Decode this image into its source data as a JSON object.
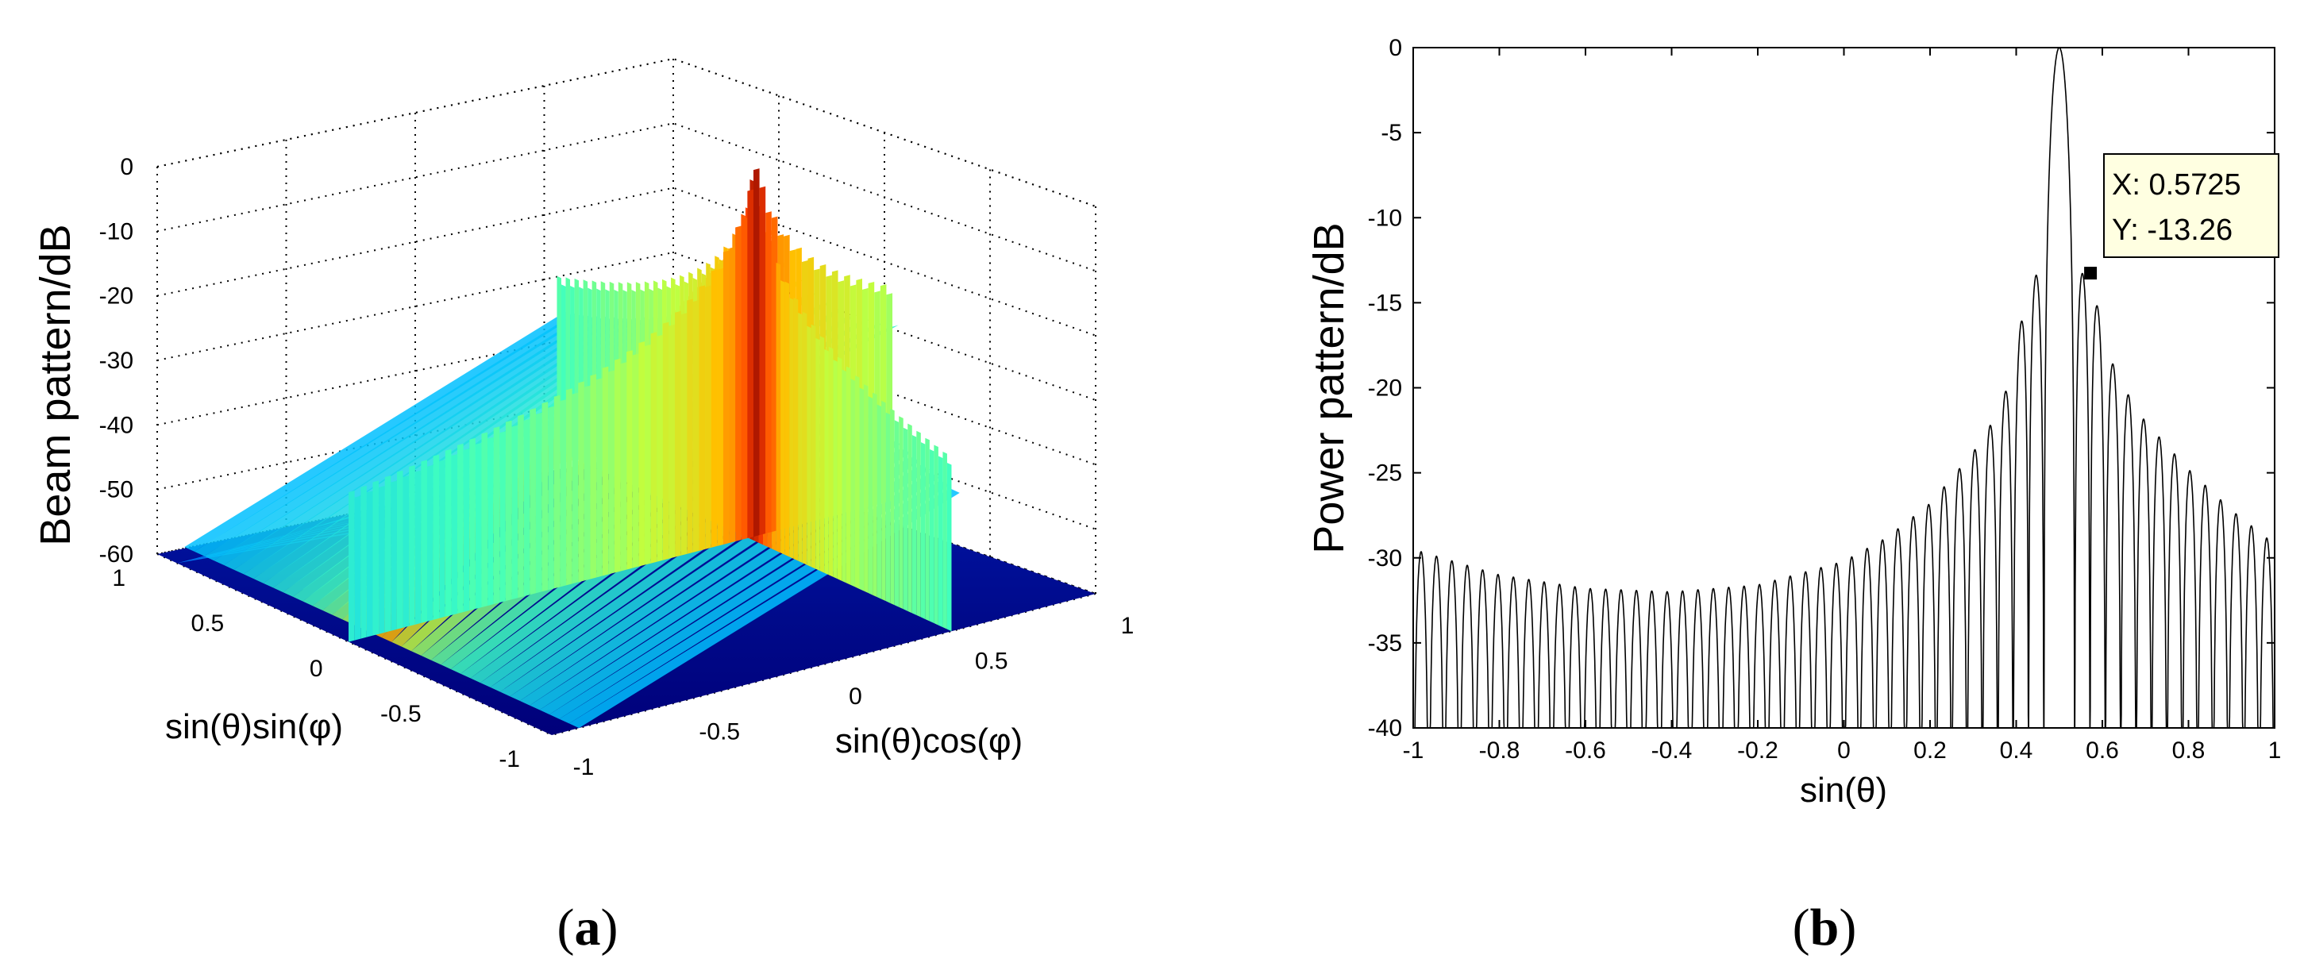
{
  "chart_data": [
    {
      "panel": "a",
      "type": "surface3d",
      "caption_label": "a",
      "zlabel": "Beam pattern/dB",
      "xlabel": "sin(θ)cos(φ)",
      "ylabel": "sin(θ)sin(φ)",
      "x_ticks": [
        "-1",
        "-0.5",
        "0",
        "0.5",
        "1"
      ],
      "y_ticks": [
        "1",
        "0.5",
        "0",
        "-0.5",
        "-1"
      ],
      "z_ticks": [
        "0",
        "-10",
        "-20",
        "-30",
        "-40",
        "-50",
        "-60"
      ],
      "xlim": [
        -1,
        1
      ],
      "ylim": [
        -1,
        1
      ],
      "zlim": [
        -60,
        0
      ],
      "peak": {
        "x": 0.5,
        "y": 0.0,
        "z": 0
      },
      "colormap": [
        "#00008f",
        "#0040ff",
        "#00c0ff",
        "#40ffbf",
        "#c0ff40",
        "#ffc000",
        "#ff4000",
        "#800000"
      ],
      "grid": true
    },
    {
      "panel": "b",
      "type": "line",
      "caption_label": "b",
      "xlabel": "sin(θ)",
      "ylabel": "Power pattern/dB",
      "xlim": [
        -1,
        1
      ],
      "ylim": [
        -40,
        0
      ],
      "x_ticks": [
        "-1",
        "-0.8",
        "-0.6",
        "-0.4",
        "-0.2",
        "0",
        "0.2",
        "0.4",
        "0.6",
        "0.8",
        "1"
      ],
      "y_ticks": [
        "0",
        "-5",
        "-10",
        "-15",
        "-20",
        "-25",
        "-30",
        "-35",
        "-40"
      ],
      "main_lobe": {
        "x": 0.5,
        "y": 0
      },
      "sidelobe_spacing": 0.0357,
      "sidelobe_peaks": [
        {
          "x": -1.0,
          "y": -29.5
        },
        {
          "x": -0.8,
          "y": -31.0
        },
        {
          "x": -0.6,
          "y": -31.8
        },
        {
          "x": -0.4,
          "y": -32.0
        },
        {
          "x": -0.2,
          "y": -31.6
        },
        {
          "x": 0.0,
          "y": -30.2
        },
        {
          "x": 0.1,
          "y": -28.8
        },
        {
          "x": 0.2,
          "y": -26.8
        },
        {
          "x": 0.3,
          "y": -23.8
        },
        {
          "x": 0.35,
          "y": -21.8
        },
        {
          "x": 0.39,
          "y": -19.3
        },
        {
          "x": 0.43,
          "y": -13.4
        },
        {
          "x": 0.5,
          "y": 0
        },
        {
          "x": 0.5725,
          "y": -13.26
        },
        {
          "x": 0.61,
          "y": -17.8
        },
        {
          "x": 0.65,
          "y": -20.0
        },
        {
          "x": 0.7,
          "y": -22.0
        },
        {
          "x": 0.8,
          "y": -24.8
        },
        {
          "x": 0.9,
          "y": -27.2
        },
        {
          "x": 1.0,
          "y": -29.2
        }
      ],
      "datatip": {
        "x": 0.5725,
        "y": -13.26,
        "x_text": "X: 0.5725",
        "y_text": "Y: -13.26"
      },
      "color": "#000000"
    }
  ]
}
